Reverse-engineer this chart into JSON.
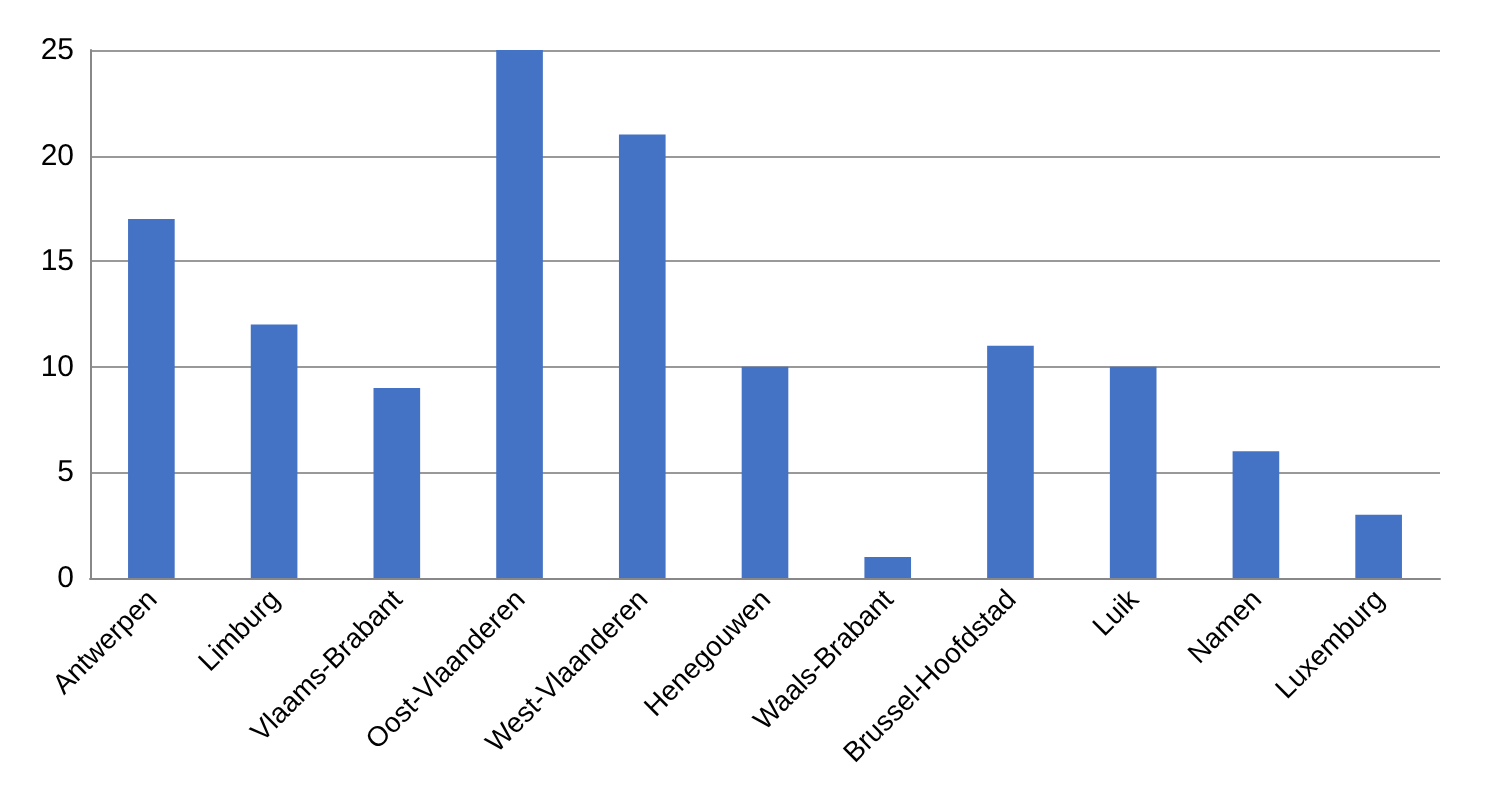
{
  "chart_data": {
    "type": "bar",
    "categories": [
      "Antwerpen",
      "Limburg",
      "Vlaams-Brabant",
      "Oost-Vlaanderen",
      "West-Vlaanderen",
      "Henegouwen",
      "Waals-Brabant",
      "Brussel-Hoofdstad",
      "Luik",
      "Namen",
      "Luxemburg"
    ],
    "values": [
      17,
      12,
      9,
      25,
      21,
      10,
      1,
      11,
      10,
      6,
      3
    ],
    "color": "#4472c4",
    "ylim": [
      0,
      25
    ],
    "yticks": [
      0,
      5,
      10,
      15,
      20,
      25
    ],
    "grid": "y"
  }
}
